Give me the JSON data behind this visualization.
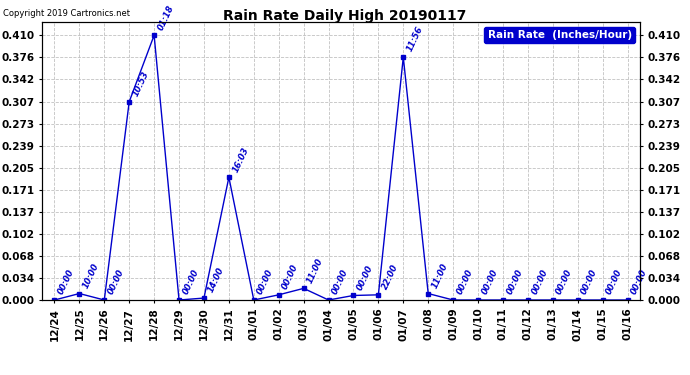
{
  "title": "Rain Rate Daily High 20190117",
  "copyright": "Copyright 2019 Cartronics.net",
  "legend_label": "Rain Rate  (Inches/Hour)",
  "line_color": "#0000cc",
  "legend_bg": "#0000cc",
  "legend_text_color": "#ffffff",
  "background_color": "#ffffff",
  "grid_color": "#bbbbbb",
  "ylim": [
    0.0,
    0.4305
  ],
  "yticks": [
    0.0,
    0.034,
    0.068,
    0.102,
    0.137,
    0.171,
    0.205,
    0.239,
    0.273,
    0.307,
    0.342,
    0.376,
    0.41
  ],
  "data_points": [
    {
      "date": "12/24",
      "time": "00:00",
      "value": 0.0
    },
    {
      "date": "12/25",
      "time": "10:00",
      "value": 0.01
    },
    {
      "date": "12/26",
      "time": "00:00",
      "value": 0.0
    },
    {
      "date": "12/27",
      "time": "10:53",
      "value": 0.307
    },
    {
      "date": "12/28",
      "time": "01:18",
      "value": 0.41
    },
    {
      "date": "12/29",
      "time": "00:00",
      "value": 0.0
    },
    {
      "date": "12/30",
      "time": "14:00",
      "value": 0.003
    },
    {
      "date": "12/31",
      "time": "16:03",
      "value": 0.19
    },
    {
      "date": "01/01",
      "time": "00:00",
      "value": 0.0
    },
    {
      "date": "01/02",
      "time": "00:00",
      "value": 0.008
    },
    {
      "date": "01/03",
      "time": "11:00",
      "value": 0.018
    },
    {
      "date": "01/04",
      "time": "00:00",
      "value": 0.0
    },
    {
      "date": "01/05",
      "time": "00:00",
      "value": 0.007
    },
    {
      "date": "01/06",
      "time": "22:00",
      "value": 0.008
    },
    {
      "date": "01/07",
      "time": "11:56",
      "value": 0.376
    },
    {
      "date": "01/08",
      "time": "11:00",
      "value": 0.01
    },
    {
      "date": "01/09",
      "time": "00:00",
      "value": 0.0
    },
    {
      "date": "01/10",
      "time": "00:00",
      "value": 0.0
    },
    {
      "date": "01/11",
      "time": "00:00",
      "value": 0.0
    },
    {
      "date": "01/12",
      "time": "00:00",
      "value": 0.0
    },
    {
      "date": "01/13",
      "time": "00:00",
      "value": 0.0
    },
    {
      "date": "01/14",
      "time": "00:00",
      "value": 0.0
    },
    {
      "date": "01/15",
      "time": "00:00",
      "value": 0.0
    },
    {
      "date": "01/16",
      "time": "00:00",
      "value": 0.0
    }
  ]
}
